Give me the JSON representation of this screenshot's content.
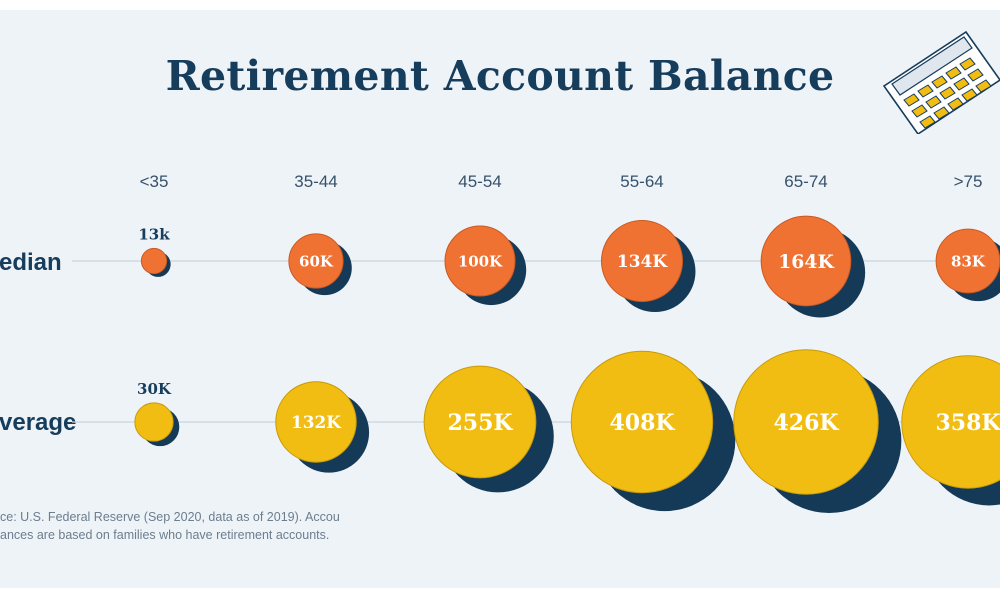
{
  "title": "Retirement Account Balance",
  "source_lines": [
    "ce: U.S. Federal Reserve (Sep 2020, data as of 2019). Account",
    "ances are based on families who have retirement accounts."
  ],
  "colors": {
    "median": "#ef7233",
    "average": "#f2bd12",
    "shadow": "#153a57",
    "title": "#173d5c"
  },
  "chart_data": {
    "type": "bubble",
    "categories": [
      "<35",
      "35-44",
      "45-54",
      "55-64",
      "65-74",
      ">75"
    ],
    "series": [
      {
        "name": "edian",
        "values": [
          13,
          60,
          100,
          134,
          164,
          83
        ],
        "labels": [
          "13k",
          "60K",
          "100K",
          "134K",
          "164K",
          "83K"
        ]
      },
      {
        "name": "verage",
        "values": [
          30,
          132,
          255,
          408,
          426,
          358
        ],
        "labels": [
          "30K",
          "132K",
          "255K",
          "408K",
          "426K",
          "358K"
        ]
      }
    ]
  }
}
